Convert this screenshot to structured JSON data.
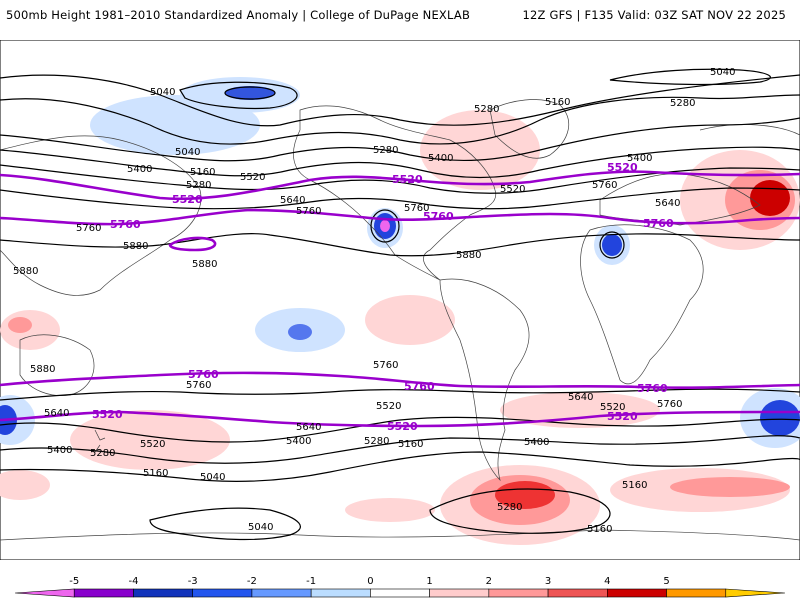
{
  "header": {
    "title": "500mb Height 1981–2010 Standardized Anomaly | College of DuPage NEXLAB",
    "run_info": "12Z GFS | F135 Valid: 03Z SAT NOV 22 2025"
  },
  "map": {
    "contour_labels": {
      "black": [
        "5040",
        "5160",
        "5280",
        "5400",
        "5520",
        "5640",
        "5760",
        "5880"
      ],
      "highlight": [
        "5520",
        "5760"
      ]
    },
    "colors": {
      "black_contour": "#000000",
      "highlight_contour": "#9900cc",
      "coast": "#333333"
    }
  },
  "colorbar": {
    "ticks": [
      "-5",
      "-4",
      "-3",
      "-2",
      "-1",
      "0",
      "1",
      "2",
      "3",
      "4",
      "5"
    ],
    "colors": [
      "#ee66ee",
      "#8800cc",
      "#1133bb",
      "#2255ee",
      "#6699ff",
      "#bbddff",
      "#ffffff",
      "#ffcccc",
      "#ff9999",
      "#ee5555",
      "#cc0000",
      "#ff9900",
      "#ffcc00"
    ]
  }
}
